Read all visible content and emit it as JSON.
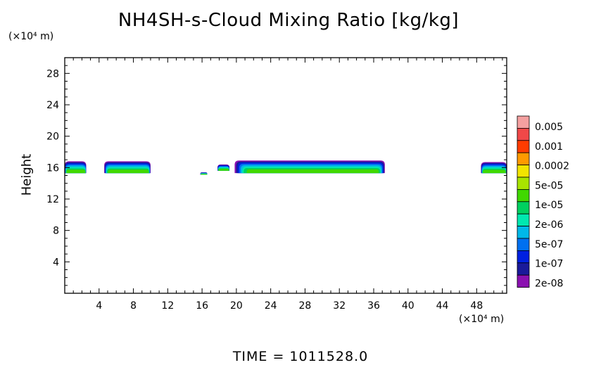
{
  "chart_data": {
    "type": "heatmap",
    "title": "NH4SH-s-Cloud Mixing Ratio [kg/kg]",
    "ylabel": "Height",
    "y_unit": "(×10⁴ m)",
    "x_unit": "(×10⁴ m)",
    "xlim": [
      0,
      51.5
    ],
    "ylim": [
      0,
      30
    ],
    "x_ticks": [
      "4",
      "8",
      "12",
      "16",
      "20",
      "24",
      "28",
      "32",
      "36",
      "40",
      "44",
      "48"
    ],
    "y_ticks": [
      "4",
      "8",
      "12",
      "16",
      "20",
      "24",
      "28"
    ],
    "footer": "TIME  =  1011528.0",
    "legend": {
      "labels": [
        "0.005",
        "0.001",
        "0.0002",
        "5e-05",
        "1e-05",
        "2e-06",
        "5e-07",
        "1e-07",
        "2e-08"
      ],
      "colors_top_to_bottom": [
        "#f4a0a0",
        "#f04848",
        "#ff3c00",
        "#ff9a00",
        "#f2e400",
        "#a8e400",
        "#40d800",
        "#00d060",
        "#00e8b0",
        "#00b8e8",
        "#0070f0",
        "#0020e0",
        "#1a1a9a",
        "#8a10b0"
      ]
    },
    "cloud_regions": [
      {
        "x_start": 0.0,
        "x_end": 2.5,
        "y_bottom": 15.3,
        "y_top": 16.8
      },
      {
        "x_start": 4.6,
        "x_end": 10.0,
        "y_bottom": 15.3,
        "y_top": 16.8
      },
      {
        "x_start": 15.8,
        "x_end": 16.6,
        "y_bottom": 15.1,
        "y_top": 15.4
      },
      {
        "x_start": 17.8,
        "x_end": 19.2,
        "y_bottom": 15.6,
        "y_top": 16.4
      },
      {
        "x_start": 19.8,
        "x_end": 37.3,
        "y_bottom": 15.3,
        "y_top": 16.9
      },
      {
        "x_start": 48.5,
        "x_end": 51.5,
        "y_bottom": 15.3,
        "y_top": 16.7
      }
    ]
  }
}
